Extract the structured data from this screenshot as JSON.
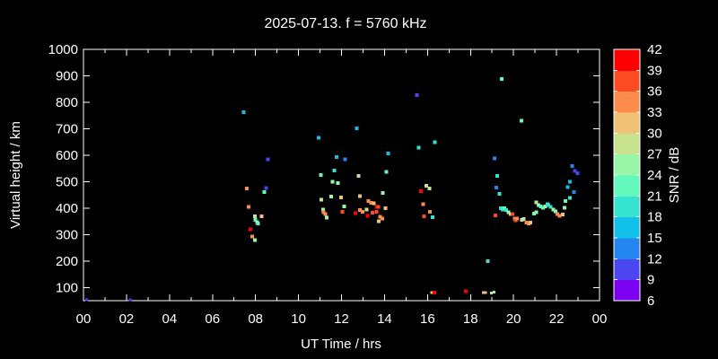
{
  "title": "2025-07-13. f = 5760 kHz",
  "colors": {
    "background": "#000000",
    "axis": "#ffffff",
    "text": "#ffffff"
  },
  "chart_data": {
    "type": "scatter",
    "title": "2025-07-13. f = 5760 kHz",
    "xlabel": "UT Time / hrs",
    "ylabel": "Virtual height / km",
    "xlim": [
      0,
      24
    ],
    "ylim": [
      50,
      1000
    ],
    "x_major_tick_hours": [
      0,
      2,
      4,
      6,
      8,
      10,
      12,
      14,
      16,
      18,
      20,
      22,
      24
    ],
    "x_tick_labels": [
      "00",
      "02",
      "04",
      "06",
      "08",
      "10",
      "12",
      "14",
      "16",
      "18",
      "20",
      "22",
      "00"
    ],
    "x_minor_tick_hours": [
      1,
      3,
      5,
      7,
      9,
      11,
      13,
      15,
      17,
      19,
      21,
      23
    ],
    "y_tick_values": [
      100,
      200,
      300,
      400,
      500,
      600,
      700,
      800,
      900,
      1000
    ],
    "grid": false,
    "colorbar": {
      "label": "SNR / dB",
      "min": 6,
      "max": 42,
      "tick_step": 3,
      "tick_labels": [
        "6",
        "9",
        "12",
        "15",
        "18",
        "21",
        "24",
        "27",
        "30",
        "33",
        "36",
        "39",
        "42"
      ],
      "segment_colors_low_to_high": [
        "#7c00f2",
        "#4b45f2",
        "#2386f0",
        "#10c0e8",
        "#36e2d0",
        "#63f8bc",
        "#99f6a9",
        "#c7e38e",
        "#efc276",
        "#fc8c4c",
        "#fd4b24",
        "#fe0000"
      ]
    },
    "point_format": [
      "ut_hours",
      "virtual_height_km",
      "snr_db",
      "optional_size_px"
    ],
    "points": [
      [
        0.15,
        53,
        10.5,
        3
      ],
      [
        2.17,
        53,
        10.5,
        3
      ],
      [
        7.46,
        763,
        16.5
      ],
      [
        7.6,
        474,
        34.5
      ],
      [
        7.69,
        404,
        34.5
      ],
      [
        7.76,
        319,
        40.5
      ],
      [
        7.85,
        293,
        34.5
      ],
      [
        7.97,
        369,
        28.5
      ],
      [
        7.97,
        279,
        25.5
      ],
      [
        8.0,
        355,
        22.5
      ],
      [
        8.07,
        347,
        25.5
      ],
      [
        8.12,
        341,
        22.5
      ],
      [
        8.29,
        369,
        31.5
      ],
      [
        8.42,
        461,
        22.5
      ],
      [
        8.5,
        476,
        10.5
      ],
      [
        8.58,
        584,
        10.5
      ],
      [
        10.93,
        665,
        16.5
      ],
      [
        11.03,
        525,
        22.5
      ],
      [
        11.07,
        431,
        28.5
      ],
      [
        11.14,
        394,
        25.5
      ],
      [
        11.17,
        384,
        34.5
      ],
      [
        11.25,
        378,
        34.5
      ],
      [
        11.31,
        363,
        25.5
      ],
      [
        11.53,
        443,
        25.5
      ],
      [
        11.59,
        499,
        25.5
      ],
      [
        11.67,
        542,
        19.5
      ],
      [
        11.76,
        593,
        16.5
      ],
      [
        11.84,
        495,
        25.5
      ],
      [
        11.98,
        440,
        31.5
      ],
      [
        12.05,
        386,
        37.5
      ],
      [
        12.12,
        407,
        25.5
      ],
      [
        12.16,
        584,
        13.5
      ],
      [
        12.64,
        381,
        40.5
      ],
      [
        12.7,
        701,
        16.5
      ],
      [
        12.79,
        522,
        28.5
      ],
      [
        12.85,
        446,
        31.5
      ],
      [
        12.85,
        392,
        34.5
      ],
      [
        12.98,
        386,
        34.5
      ],
      [
        13.16,
        395,
        28.5
      ],
      [
        13.2,
        370,
        40.5
      ],
      [
        13.26,
        427,
        34.5
      ],
      [
        13.37,
        420,
        34.5
      ],
      [
        13.44,
        383,
        37.5
      ],
      [
        13.51,
        418,
        31.5
      ],
      [
        13.62,
        404,
        40.5
      ],
      [
        13.62,
        386,
        37.5
      ],
      [
        13.72,
        404,
        37.5
      ],
      [
        13.74,
        350,
        31.5
      ],
      [
        13.79,
        367,
        34.5
      ],
      [
        13.9,
        361,
        34.5
      ],
      [
        13.93,
        457,
        25.5
      ],
      [
        14.04,
        400,
        31.5
      ],
      [
        14.09,
        537,
        22.5
      ],
      [
        14.16,
        607,
        16.5
      ],
      [
        15.51,
        827,
        10.5
      ],
      [
        15.59,
        628,
        19.5
      ],
      [
        15.69,
        464,
        40.5
      ],
      [
        15.79,
        414,
        34.5
      ],
      [
        15.85,
        369,
        37.5
      ],
      [
        15.94,
        485,
        28.5
      ],
      [
        16.08,
        474,
        28.5
      ],
      [
        16.12,
        386,
        34.5
      ],
      [
        16.23,
        365,
        19.5
      ],
      [
        16.35,
        649,
        19.5
      ],
      [
        16.19,
        80,
        31.5,
        3
      ],
      [
        16.33,
        80,
        40.5
      ],
      [
        17.78,
        85,
        40.5
      ],
      [
        18.59,
        80,
        31.5,
        3
      ],
      [
        18.7,
        80,
        31.5,
        3
      ],
      [
        18.98,
        78,
        28.5,
        3
      ],
      [
        19.1,
        82,
        25.5,
        3
      ],
      [
        18.8,
        200,
        19.5
      ],
      [
        19.12,
        588,
        13.5
      ],
      [
        19.21,
        478,
        13.5
      ],
      [
        19.25,
        522,
        19.5
      ],
      [
        19.35,
        454,
        19.5
      ],
      [
        19.45,
        888,
        22.5
      ],
      [
        19.15,
        372,
        37.5
      ],
      [
        19.4,
        400,
        19.5
      ],
      [
        19.5,
        394,
        19.5
      ],
      [
        19.58,
        400,
        22.5
      ],
      [
        19.66,
        392,
        19.5
      ],
      [
        19.76,
        385,
        25.5
      ],
      [
        19.86,
        377,
        28.5
      ],
      [
        19.96,
        378,
        37.5
      ],
      [
        20.05,
        361,
        34.5
      ],
      [
        20.1,
        354,
        37.5
      ],
      [
        20.16,
        361,
        34.5
      ],
      [
        20.37,
        731,
        22.5
      ],
      [
        20.38,
        355,
        28.5
      ],
      [
        20.48,
        358,
        28.5
      ],
      [
        20.6,
        346,
        34.5
      ],
      [
        20.7,
        341,
        34.5
      ],
      [
        20.78,
        346,
        31.5
      ],
      [
        20.96,
        379,
        22.5
      ],
      [
        21.05,
        384,
        25.5
      ],
      [
        21.06,
        421,
        28.5
      ],
      [
        21.16,
        412,
        25.5
      ],
      [
        21.26,
        407,
        22.5
      ],
      [
        21.37,
        401,
        22.5
      ],
      [
        21.48,
        407,
        25.5
      ],
      [
        21.58,
        415,
        19.5
      ],
      [
        21.62,
        412,
        19.5
      ],
      [
        21.72,
        404,
        19.5
      ],
      [
        21.86,
        395,
        25.5
      ],
      [
        21.96,
        388,
        25.5
      ],
      [
        22.04,
        378,
        34.5
      ],
      [
        22.14,
        370,
        34.5
      ],
      [
        22.28,
        375,
        31.5
      ],
      [
        22.38,
        401,
        25.5
      ],
      [
        22.41,
        427,
        22.5
      ],
      [
        22.51,
        480,
        16.5
      ],
      [
        22.62,
        438,
        19.5
      ],
      [
        22.62,
        500,
        16.5
      ],
      [
        22.73,
        559,
        13.5
      ],
      [
        22.8,
        461,
        13.5
      ],
      [
        22.86,
        540,
        10.5
      ],
      [
        22.98,
        531,
        10.5
      ]
    ]
  }
}
